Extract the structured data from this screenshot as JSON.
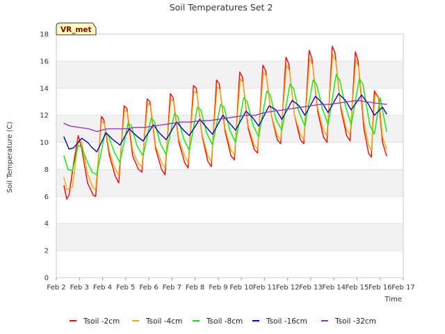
{
  "chart_data": {
    "type": "line",
    "title": "Soil Temperatures Set 2",
    "xlabel": "Time",
    "ylabel": "Soil Temperature (C)",
    "ylim": [
      0,
      18
    ],
    "yticks": [
      0,
      2,
      4,
      6,
      8,
      10,
      12,
      14,
      16,
      18
    ],
    "xlim": [
      2,
      17
    ],
    "xticks": [
      {
        "x": 2,
        "label": "Feb 2"
      },
      {
        "x": 3,
        "label": "Feb 3"
      },
      {
        "x": 4,
        "label": "Feb 4"
      },
      {
        "x": 5,
        "label": "Feb 5"
      },
      {
        "x": 6,
        "label": "Feb 6"
      },
      {
        "x": 7,
        "label": "Feb 7"
      },
      {
        "x": 8,
        "label": "Feb 8"
      },
      {
        "x": 9,
        "label": "Feb 9"
      },
      {
        "x": 10,
        "label": "Feb 10"
      },
      {
        "x": 11,
        "label": "Feb 11"
      },
      {
        "x": 12,
        "label": "Feb 12"
      },
      {
        "x": 13,
        "label": "Feb 13"
      },
      {
        "x": 14,
        "label": "Feb 14"
      },
      {
        "x": 15,
        "label": "Feb 15"
      },
      {
        "x": 16,
        "label": "Feb 16"
      },
      {
        "x": 17,
        "label": "Feb 17"
      }
    ],
    "grid": true,
    "banded_background": true,
    "legend_position": "bottom",
    "annotation": "VR_met",
    "series": [
      {
        "name": "Tsoil -2cm",
        "color": "#ff0000",
        "x": [
          2.33,
          2.45,
          2.55,
          2.75,
          2.95,
          3.1,
          3.35,
          3.6,
          3.7,
          3.95,
          4.05,
          4.3,
          4.55,
          4.7,
          4.93,
          5.05,
          5.3,
          5.55,
          5.7,
          5.93,
          6.05,
          6.3,
          6.55,
          6.7,
          6.93,
          7.05,
          7.3,
          7.55,
          7.7,
          7.93,
          8.05,
          8.3,
          8.55,
          8.7,
          8.93,
          9.05,
          9.3,
          9.55,
          9.7,
          9.93,
          10.05,
          10.3,
          10.55,
          10.7,
          10.93,
          11.05,
          11.3,
          11.55,
          11.7,
          11.93,
          12.05,
          12.3,
          12.55,
          12.7,
          12.93,
          13.05,
          13.3,
          13.55,
          13.7,
          13.93,
          14.05,
          14.3,
          14.55,
          14.7,
          14.93,
          15.05,
          15.3,
          15.5,
          15.62,
          15.75,
          15.93,
          16.1,
          16.28
        ],
        "y": [
          6.8,
          5.8,
          6.1,
          8.5,
          10.5,
          9.5,
          7.0,
          6.1,
          6.0,
          11.9,
          11.7,
          9.0,
          7.5,
          7.0,
          12.7,
          12.5,
          9.0,
          8.0,
          7.8,
          13.2,
          13.0,
          9.5,
          8.0,
          7.6,
          13.6,
          13.3,
          10.0,
          8.5,
          8.1,
          14.2,
          14.0,
          10.5,
          8.6,
          8.2,
          14.6,
          14.3,
          10.8,
          9.0,
          8.7,
          15.2,
          14.8,
          11.0,
          9.5,
          9.2,
          15.7,
          15.3,
          12.0,
          10.2,
          9.9,
          16.3,
          15.8,
          12.0,
          10.2,
          9.9,
          16.8,
          16.2,
          12.3,
          10.4,
          10.0,
          17.1,
          16.6,
          12.5,
          10.5,
          10.1,
          16.7,
          16.0,
          11.0,
          9.2,
          8.9,
          13.8,
          13.3,
          10.0,
          9.0
        ]
      },
      {
        "name": "Tsoil -4cm",
        "color": "#ffa500",
        "x": [
          2.33,
          2.45,
          2.7,
          2.95,
          3.1,
          3.35,
          3.6,
          3.7,
          3.95,
          4.08,
          4.3,
          4.55,
          4.7,
          4.95,
          5.08,
          5.3,
          5.55,
          5.7,
          5.95,
          6.08,
          6.3,
          6.55,
          6.7,
          6.95,
          7.08,
          7.3,
          7.55,
          7.7,
          7.95,
          8.08,
          8.3,
          8.55,
          8.7,
          8.95,
          9.08,
          9.3,
          9.55,
          9.7,
          9.95,
          10.08,
          10.3,
          10.55,
          10.7,
          10.95,
          11.08,
          11.3,
          11.55,
          11.7,
          11.95,
          12.08,
          12.3,
          12.55,
          12.7,
          12.95,
          13.08,
          13.3,
          13.55,
          13.7,
          13.95,
          14.08,
          14.3,
          14.55,
          14.7,
          14.95,
          15.08,
          15.3,
          15.5,
          15.62,
          15.78,
          15.95,
          16.1,
          16.28
        ],
        "y": [
          7.4,
          6.5,
          6.7,
          10.2,
          10.0,
          7.7,
          6.6,
          6.5,
          11.5,
          11.4,
          9.3,
          8.0,
          7.6,
          12.4,
          12.2,
          9.4,
          8.4,
          8.2,
          12.9,
          12.7,
          9.7,
          8.5,
          8.1,
          13.2,
          13.0,
          10.2,
          9.0,
          8.5,
          13.8,
          13.6,
          10.6,
          9.0,
          8.6,
          14.1,
          13.9,
          11.0,
          9.4,
          9.1,
          14.7,
          14.4,
          11.2,
          9.8,
          9.5,
          15.2,
          14.9,
          12.0,
          10.5,
          10.2,
          15.7,
          15.3,
          12.0,
          10.6,
          10.2,
          16.2,
          15.7,
          12.5,
          10.9,
          10.5,
          16.5,
          16.0,
          12.7,
          10.9,
          10.6,
          16.1,
          15.5,
          11.5,
          9.8,
          9.4,
          13.6,
          13.2,
          10.4,
          9.5
        ]
      },
      {
        "name": "Tsoil -8cm",
        "color": "#00ee00",
        "x": [
          2.33,
          2.5,
          2.7,
          2.95,
          3.1,
          3.35,
          3.55,
          3.75,
          4.1,
          4.25,
          4.5,
          4.75,
          5.1,
          5.25,
          5.5,
          5.75,
          6.1,
          6.25,
          6.5,
          6.75,
          7.1,
          7.25,
          7.5,
          7.75,
          8.1,
          8.25,
          8.5,
          8.75,
          9.1,
          9.25,
          9.5,
          9.75,
          10.1,
          10.25,
          10.5,
          10.75,
          11.1,
          11.25,
          11.5,
          11.75,
          12.1,
          12.25,
          12.5,
          12.75,
          13.1,
          13.25,
          13.5,
          13.75,
          14.1,
          14.25,
          14.5,
          14.75,
          15.1,
          15.25,
          15.55,
          15.75,
          16.0,
          16.28
        ],
        "y": [
          9.0,
          8.0,
          7.9,
          9.8,
          9.6,
          8.5,
          7.8,
          7.6,
          10.7,
          10.5,
          9.3,
          8.5,
          11.4,
          11.2,
          9.7,
          9.0,
          11.8,
          11.5,
          9.9,
          9.1,
          12.1,
          11.9,
          10.3,
          9.4,
          12.6,
          12.4,
          10.7,
          9.8,
          12.8,
          12.6,
          10.9,
          10.0,
          13.3,
          13.0,
          11.3,
          10.4,
          13.8,
          13.5,
          11.7,
          10.9,
          14.3,
          14.0,
          12.2,
          11.2,
          14.6,
          14.3,
          12.5,
          11.3,
          15.0,
          14.6,
          12.7,
          11.3,
          14.7,
          14.3,
          11.3,
          10.6,
          13.3,
          10.8
        ]
      },
      {
        "name": "Tsoil -16cm",
        "color": "#0000cd",
        "x": [
          2.33,
          2.55,
          2.75,
          3.1,
          3.35,
          3.55,
          3.75,
          4.15,
          4.45,
          4.75,
          5.15,
          5.45,
          5.75,
          6.2,
          6.45,
          6.75,
          7.2,
          7.5,
          7.75,
          8.2,
          8.5,
          8.75,
          9.2,
          9.5,
          9.75,
          10.2,
          10.5,
          10.75,
          11.2,
          11.5,
          11.75,
          12.2,
          12.5,
          12.75,
          13.2,
          13.5,
          13.75,
          14.2,
          14.5,
          14.75,
          15.2,
          15.5,
          15.75,
          16.1,
          16.28
        ],
        "y": [
          10.4,
          9.5,
          9.6,
          10.3,
          10.0,
          9.6,
          9.3,
          10.7,
          10.2,
          9.8,
          11.0,
          10.5,
          10.1,
          11.3,
          10.7,
          10.2,
          11.5,
          10.9,
          10.5,
          11.7,
          11.1,
          10.6,
          12.0,
          11.4,
          10.9,
          12.3,
          11.8,
          11.2,
          12.7,
          12.4,
          11.7,
          13.1,
          12.7,
          12.0,
          13.4,
          12.9,
          12.2,
          13.6,
          13.1,
          12.4,
          13.5,
          12.8,
          12.0,
          12.6,
          12.1
        ]
      },
      {
        "name": "Tsoil -32cm",
        "color": "#9932cc",
        "x": [
          2.33,
          2.6,
          3.0,
          3.4,
          3.75,
          4.2,
          4.6,
          5.0,
          5.4,
          5.8,
          6.2,
          6.6,
          7.0,
          7.4,
          7.8,
          8.2,
          8.6,
          9.0,
          9.4,
          9.8,
          10.2,
          10.6,
          11.0,
          11.4,
          11.8,
          12.2,
          12.6,
          13.0,
          13.4,
          13.8,
          14.2,
          14.6,
          15.0,
          15.4,
          15.8,
          16.28
        ],
        "y": [
          11.4,
          11.2,
          11.1,
          11.0,
          10.8,
          11.0,
          11.0,
          11.0,
          11.1,
          11.1,
          11.2,
          11.3,
          11.4,
          11.5,
          11.5,
          11.6,
          11.6,
          11.7,
          11.8,
          11.9,
          12.0,
          12.0,
          12.2,
          12.3,
          12.4,
          12.5,
          12.6,
          12.7,
          12.8,
          12.8,
          12.9,
          13.0,
          13.1,
          13.0,
          12.9,
          12.8
        ]
      }
    ]
  }
}
